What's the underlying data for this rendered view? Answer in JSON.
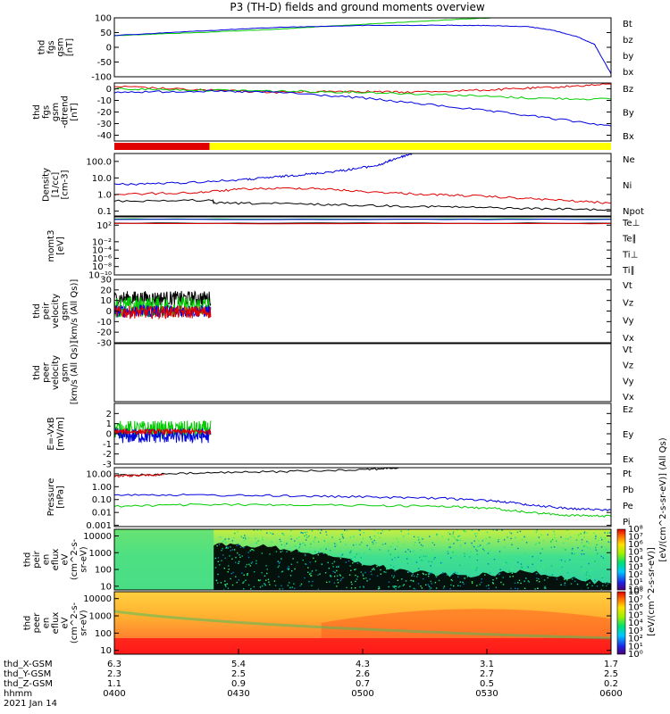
{
  "title": "P3 (TH-D) fields and ground moments overview",
  "colors": {
    "black": "#000000",
    "red": "#e00000",
    "green": "#00cc00",
    "blue": "#0000e0",
    "yellow": "#ffff00",
    "axis": "#000000"
  },
  "chart_data": [
    {
      "id": "fgs_gsm",
      "type": "line",
      "ylabel": [
        "thd",
        "fgs",
        "gsm",
        "[nT]"
      ],
      "ylim": [
        -100,
        100
      ],
      "yticks": [
        100,
        50,
        0,
        -50,
        -100
      ],
      "legend": [
        {
          "name": "Bt",
          "color": "black"
        },
        {
          "name": "bz",
          "color": "red"
        },
        {
          "name": "by",
          "color": "green"
        },
        {
          "name": "bx",
          "color": "blue"
        }
      ],
      "series": [
        {
          "name": "by",
          "color": "green",
          "t": [
            0,
            10,
            20,
            30,
            40,
            45.5
          ],
          "v": [
            40,
            50,
            62,
            78,
            93,
            100
          ]
        },
        {
          "name": "bx",
          "color": "blue",
          "t": [
            0,
            10,
            20,
            30,
            40,
            45,
            50,
            53,
            56,
            58,
            60
          ],
          "v": [
            40,
            55,
            68,
            74,
            75,
            74,
            70,
            58,
            35,
            10,
            -90
          ]
        }
      ]
    },
    {
      "id": "fgs_gsm_dtrend",
      "type": "line",
      "ylabel": [
        "thd",
        "fgs",
        "gsm",
        "-dtrend",
        "[nT]"
      ],
      "ylim": [
        -45,
        5
      ],
      "yticks": [
        0,
        -10,
        -20,
        -30,
        -40
      ],
      "legend": [
        {
          "name": "Bz",
          "color": "red"
        },
        {
          "name": "By",
          "color": "green"
        },
        {
          "name": "Bx",
          "color": "blue"
        }
      ],
      "series": [
        {
          "name": "Bz",
          "color": "red",
          "t": [
            0,
            10,
            20,
            28,
            35,
            45,
            52,
            60
          ],
          "v": [
            2,
            -1,
            -3,
            -2,
            -3,
            -1,
            1,
            4
          ]
        },
        {
          "name": "By",
          "color": "green",
          "t": [
            0,
            10,
            20,
            30,
            40,
            50,
            60
          ],
          "v": [
            0,
            -1,
            -2,
            -3,
            -5,
            -8,
            -9
          ]
        },
        {
          "name": "Bx",
          "color": "blue",
          "t": [
            0,
            10,
            20,
            30,
            40,
            50,
            60
          ],
          "v": [
            -3,
            -2,
            -3,
            -8,
            -15,
            -23,
            -32
          ]
        }
      ]
    },
    {
      "id": "mode_bar",
      "type": "bar",
      "segments": [
        {
          "t_start": 0,
          "t_end": 11.5,
          "color": "red"
        },
        {
          "t_start": 11.5,
          "t_end": 60,
          "color": "yellow"
        }
      ]
    },
    {
      "id": "density",
      "type": "line",
      "scale": "log",
      "ylabel": [
        "Density",
        "[1/cc]",
        "[cm-3]"
      ],
      "ylim": [
        0.05,
        300
      ],
      "yticks": [
        100.0,
        10.0,
        1.0,
        0.1
      ],
      "ytick_labels": [
        "100.0",
        "10.0",
        "1.0",
        "0.1"
      ],
      "legend": [
        {
          "name": "Ne",
          "color": "red"
        },
        {
          "name": "Ni",
          "color": "black"
        },
        {
          "name": "Npot",
          "color": "blue"
        }
      ],
      "series": [
        {
          "name": "Npot",
          "color": "blue",
          "t": [
            0,
            8,
            16,
            20,
            24,
            28,
            32,
            34,
            36
          ],
          "v": [
            4,
            5,
            8,
            12,
            18,
            30,
            60,
            150,
            300
          ]
        },
        {
          "name": "Ne",
          "color": "red",
          "t": [
            0,
            10,
            16,
            24,
            30,
            38,
            44,
            52,
            60
          ],
          "v": [
            1,
            1.3,
            2.2,
            2.4,
            1.5,
            1.0,
            0.8,
            0.5,
            0.3
          ]
        },
        {
          "name": "Ni",
          "color": "black",
          "t": [
            0,
            11.9,
            12,
            20,
            30,
            40,
            50,
            60
          ],
          "v": [
            0.4,
            0.45,
            0.3,
            0.28,
            0.22,
            0.18,
            0.14,
            0.12
          ]
        }
      ]
    },
    {
      "id": "moments_t3",
      "type": "line",
      "scale": "log",
      "ylabel": [
        "momt3",
        "[eV]"
      ],
      "ylim": [
        1e-10,
        10000.0
      ],
      "yticks": [
        100,
        0.01,
        0.0001,
        1e-06,
        1e-08,
        1e-10
      ],
      "ytick_labels": [
        "10²",
        "10⁻²",
        "10⁻⁴",
        "10⁻⁶",
        "10⁻⁸",
        "10⁻¹⁰"
      ],
      "legend": [
        {
          "name": "Te⊥",
          "color": "red"
        },
        {
          "name": "Te∥",
          "color": "black"
        },
        {
          "name": "Ti⊥",
          "color": "blue"
        },
        {
          "name": "Ti∥",
          "color": "green"
        }
      ],
      "series": [
        {
          "name": "Ti∥",
          "color": "green",
          "t": [
            0,
            60
          ],
          "v": [
            3000,
            3000
          ]
        },
        {
          "name": "Ti⊥",
          "color": "blue",
          "t": [
            0,
            60
          ],
          "v": [
            2500,
            2500
          ]
        },
        {
          "name": "Te∥",
          "color": "black",
          "t": [
            0,
            60
          ],
          "v": [
            300,
            300
          ]
        },
        {
          "name": "Te⊥",
          "color": "red",
          "t": [
            0,
            60
          ],
          "v": [
            250,
            250
          ]
        }
      ]
    },
    {
      "id": "peir_velocity",
      "type": "line",
      "ylabel": [
        "thd",
        "peir",
        "velocity",
        "gsm",
        "[km/s (All Qs)]"
      ],
      "ylim": [
        -30,
        30
      ],
      "yticks": [
        30,
        20,
        10,
        0,
        -10,
        -20,
        -30
      ],
      "legend": [
        {
          "name": "Vt",
          "color": "black"
        },
        {
          "name": "Vz",
          "color": "red"
        },
        {
          "name": "Vy",
          "color": "green"
        },
        {
          "name": "Vx",
          "color": "blue"
        }
      ],
      "noise": [
        {
          "name": "Vt",
          "color": "black",
          "t0": 0,
          "t1": 11.7,
          "mean": 12,
          "amp": 14
        },
        {
          "name": "Vy",
          "color": "green",
          "t0": 0,
          "t1": 11.7,
          "mean": 4,
          "amp": 20
        },
        {
          "name": "Vx",
          "color": "blue",
          "t0": 0,
          "t1": 11.7,
          "mean": 0,
          "amp": 12
        },
        {
          "name": "Vz",
          "color": "red",
          "t0": 0,
          "t1": 11.7,
          "mean": -1,
          "amp": 12
        }
      ]
    },
    {
      "id": "peer_velocity",
      "type": "line",
      "ylabel": [
        "thd",
        "peer",
        "velocity",
        "gsm",
        "[km/s (All Qs)]"
      ],
      "ylim": [
        -30,
        30
      ],
      "yticks": [],
      "legend": [
        {
          "name": "Vt",
          "color": "black"
        },
        {
          "name": "Vz",
          "color": "red"
        },
        {
          "name": "Vy",
          "color": "green"
        },
        {
          "name": "Vx",
          "color": "blue"
        }
      ]
    },
    {
      "id": "e_vxb",
      "type": "line",
      "ylabel": [
        "E=-VxB",
        "[mV/m]"
      ],
      "ylim": [
        -3,
        3
      ],
      "yticks": [
        2,
        1,
        0,
        -1,
        -2,
        -3
      ],
      "legend": [
        {
          "name": "Ez",
          "color": "red"
        },
        {
          "name": "Ey",
          "color": "green"
        },
        {
          "name": "Ex",
          "color": "blue"
        }
      ],
      "noise": [
        {
          "name": "Ey",
          "color": "green",
          "t0": 0,
          "t1": 11.7,
          "mean": 0.4,
          "amp": 1.8
        },
        {
          "name": "Ex",
          "color": "blue",
          "t0": 0,
          "t1": 11.7,
          "mean": -0.2,
          "amp": 1.5
        },
        {
          "name": "Ez",
          "color": "red",
          "t0": 0,
          "t1": 11.7,
          "mean": 0.2,
          "amp": 0.5
        }
      ]
    },
    {
      "id": "pressure",
      "type": "line",
      "scale": "log",
      "ylabel": [
        "Pressure",
        "[nPa]"
      ],
      "ylim": [
        0.0008,
        30
      ],
      "yticks": [
        10.0,
        1.0,
        0.1,
        0.01,
        0.001
      ],
      "ytick_labels": [
        "10.00",
        "1.00",
        "0.10",
        "0.01",
        "0.001"
      ],
      "legend": [
        {
          "name": "Pt",
          "color": "black"
        },
        {
          "name": "Pb",
          "color": "red"
        },
        {
          "name": "Pe",
          "color": "green"
        },
        {
          "name": "Pi",
          "color": "blue"
        }
      ],
      "series": [
        {
          "name": "Pt",
          "color": "black",
          "t": [
            0,
            10,
            20,
            30,
            35
          ],
          "v": [
            7,
            11,
            15,
            22,
            30
          ]
        },
        {
          "name": "Pb",
          "color": "red",
          "t": [
            0,
            3,
            6
          ],
          "v": [
            6.5,
            7.5,
            8.5
          ]
        },
        {
          "name": "Pi",
          "color": "blue",
          "t": [
            0,
            10,
            20,
            30,
            40,
            46,
            50,
            55,
            60
          ],
          "v": [
            0.25,
            0.22,
            0.2,
            0.16,
            0.12,
            0.08,
            0.04,
            0.02,
            0.015
          ]
        },
        {
          "name": "Pe",
          "color": "green",
          "t": [
            0,
            10,
            20,
            30,
            40,
            46,
            50,
            55,
            60
          ],
          "v": [
            0.03,
            0.04,
            0.04,
            0.035,
            0.03,
            0.02,
            0.01,
            0.006,
            0.005
          ]
        }
      ],
      "right_label": "[eV/(cm^2-s-sr-eV)] (All Qs)"
    },
    {
      "id": "peir_en_eflux",
      "type": "heatmap",
      "ylabel": [
        "thd",
        "peir",
        "en",
        "eflux",
        "eV",
        "(cm^2-s-",
        "sr-eV)"
      ],
      "yticks": [
        10000,
        1000,
        100,
        10
      ],
      "ytick_labels": [
        "10000",
        "1000",
        "100",
        "10"
      ],
      "ylim": [
        6,
        25000
      ]
    },
    {
      "id": "peer_en_eflux",
      "type": "heatmap",
      "ylabel": [
        "thd",
        "peer",
        "en",
        "eflux",
        "eV",
        "(cm^2-s-",
        "sr-eV)"
      ],
      "yticks": [
        10000,
        1000,
        100,
        10
      ],
      "ytick_labels": [
        "10000",
        "1000",
        "100",
        "10"
      ],
      "ylim": [
        6,
        25000
      ]
    }
  ],
  "colorbars": [
    {
      "id": "peir_colorbar",
      "ticks": [
        "10⁸",
        "10⁷",
        "10⁶",
        "10⁵",
        "10⁴",
        "10³",
        "10²",
        "10¹",
        "10⁰"
      ]
    },
    {
      "id": "peer_colorbar",
      "ticks": [
        "10⁸",
        "10⁷",
        "10⁶",
        "10⁵",
        "10⁴",
        "10³",
        "10²",
        "10¹",
        "10⁰"
      ]
    }
  ],
  "colorbar_label": "[eV/(cm^2-s-sr-eV)]",
  "colorbar_label_top": "[eV/(cm^2-s-sr-eV)] (All Qs)",
  "xaxis": {
    "t_range": [
      0,
      60
    ],
    "ticks_t": [
      0,
      15,
      30,
      45,
      60
    ],
    "rows": [
      {
        "label": "thd_X-GSM",
        "values": [
          "6.3",
          "5.4",
          "4.3",
          "3.1",
          "1.7"
        ]
      },
      {
        "label": "thd_Y-GSM",
        "values": [
          "2.3",
          "2.5",
          "2.6",
          "2.7",
          "2.5"
        ]
      },
      {
        "label": "thd_Z-GSM",
        "values": [
          "1.1",
          "0.9",
          "0.7",
          "0.5",
          "0.2"
        ]
      },
      {
        "label": "hhmm",
        "values": [
          "0400",
          "0430",
          "0500",
          "0530",
          "0600"
        ]
      }
    ],
    "date": "2021 Jan 14"
  }
}
